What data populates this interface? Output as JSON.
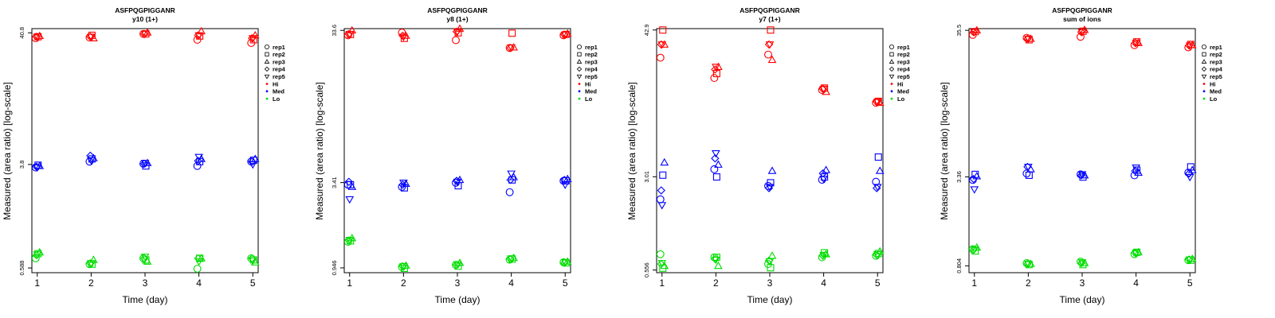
{
  "common": {
    "xlabel": "Time (day)",
    "ylabel": "Measured (area ratio) [log-scale]",
    "x_ticks": [
      1,
      2,
      3,
      4,
      5
    ],
    "legend": [
      {
        "label": "rep1",
        "symbol": "circle"
      },
      {
        "label": "rep2",
        "symbol": "square"
      },
      {
        "label": "rep3",
        "symbol": "triangle-up"
      },
      {
        "label": "rep4",
        "symbol": "diamond"
      },
      {
        "label": "rep5",
        "symbol": "triangle-down"
      },
      {
        "label": "Hi",
        "symbol": "dot",
        "color": "#ff0000"
      },
      {
        "label": "Med",
        "symbol": "dot",
        "color": "#0000ff"
      },
      {
        "label": "Lo",
        "symbol": "dot",
        "color": "#00dd00"
      }
    ],
    "legend_position": "right",
    "colors": {
      "Hi": "#ff0000",
      "Med": "#0000ff",
      "Lo": "#00dd00"
    }
  },
  "chart_data": [
    {
      "type": "scatter",
      "title": "ASFPQGPIGGANR",
      "subtitle": "y10 (1+)",
      "y_scale": "log",
      "y_ticks": [
        0.588,
        3.8,
        40.8
      ],
      "ylim": [
        0.54,
        44
      ],
      "x": [
        1,
        2,
        3,
        4,
        5
      ],
      "series": [
        {
          "level": "Hi",
          "replicate": "rep1",
          "values": [
            37,
            37.5,
            40,
            36,
            34
          ]
        },
        {
          "level": "Hi",
          "replicate": "rep2",
          "values": [
            38,
            39,
            40,
            38.5,
            36
          ]
        },
        {
          "level": "Hi",
          "replicate": "rep3",
          "values": [
            38.5,
            37,
            41,
            42,
            39
          ]
        },
        {
          "level": "Hi",
          "replicate": "rep4",
          "values": [
            38,
            38,
            40,
            39,
            37
          ]
        },
        {
          "level": "Hi",
          "replicate": "rep5",
          "values": [
            38,
            38,
            40,
            39,
            37
          ]
        },
        {
          "level": "Med",
          "replicate": "rep1",
          "values": [
            3.6,
            4.0,
            3.85,
            3.7,
            4.0
          ]
        },
        {
          "level": "Med",
          "replicate": "rep2",
          "values": [
            3.75,
            4.2,
            3.7,
            4.0,
            4.1
          ]
        },
        {
          "level": "Med",
          "replicate": "rep3",
          "values": [
            3.7,
            4.25,
            3.9,
            4.2,
            4.2
          ]
        },
        {
          "level": "Med",
          "replicate": "rep4",
          "values": [
            3.65,
            4.45,
            3.85,
            4.05,
            4.0
          ]
        },
        {
          "level": "Med",
          "replicate": "rep5",
          "values": [
            3.6,
            4.1,
            3.9,
            4.35,
            3.8
          ]
        },
        {
          "level": "Lo",
          "replicate": "rep1",
          "values": [
            0.7,
            0.63,
            0.7,
            0.58,
            0.7
          ]
        },
        {
          "level": "Lo",
          "replicate": "rep2",
          "values": [
            0.76,
            0.63,
            0.68,
            0.7,
            0.68
          ]
        },
        {
          "level": "Lo",
          "replicate": "rep3",
          "values": [
            0.78,
            0.68,
            0.66,
            0.7,
            0.65
          ]
        },
        {
          "level": "Lo",
          "replicate": "rep4",
          "values": [
            0.74,
            0.64,
            0.7,
            0.7,
            0.7
          ]
        },
        {
          "level": "Lo",
          "replicate": "rep5",
          "values": [
            0.75,
            0.64,
            0.72,
            0.66,
            0.67
          ]
        }
      ]
    },
    {
      "type": "scatter",
      "title": "ASFPQGPIGGANR",
      "subtitle": "y8 (1+)",
      "y_scale": "log",
      "y_ticks": [
        0.946,
        3.41,
        33.6
      ],
      "ylim": [
        0.88,
        34.5
      ],
      "x": [
        1,
        2,
        3,
        4,
        5
      ],
      "series": [
        {
          "level": "Hi",
          "replicate": "rep1",
          "values": [
            31.2,
            32.5,
            29.0,
            25.8,
            31.2
          ]
        },
        {
          "level": "Hi",
          "replicate": "rep2",
          "values": [
            31.6,
            29.8,
            32.4,
            32.2,
            31.6
          ]
        },
        {
          "level": "Hi",
          "replicate": "rep3",
          "values": [
            33.6,
            31.0,
            34.5,
            26.0,
            32.0
          ]
        },
        {
          "level": "Hi",
          "replicate": "rep4",
          "values": [
            31.8,
            31.0,
            33.0,
            25.8,
            31.5
          ]
        },
        {
          "level": "Hi",
          "replicate": "rep5",
          "values": [
            31.8,
            30.5,
            33.0,
            26.0,
            31.5
          ]
        },
        {
          "level": "Med",
          "replicate": "rep1",
          "values": [
            3.3,
            3.2,
            3.4,
            2.95,
            3.5
          ]
        },
        {
          "level": "Med",
          "replicate": "rep2",
          "values": [
            3.3,
            3.15,
            3.25,
            3.55,
            3.5
          ]
        },
        {
          "level": "Med",
          "replicate": "rep3",
          "values": [
            3.2,
            3.35,
            3.55,
            3.7,
            3.6
          ]
        },
        {
          "level": "Med",
          "replicate": "rep4",
          "values": [
            3.45,
            3.3,
            3.5,
            3.55,
            3.55
          ]
        },
        {
          "level": "Med",
          "replicate": "rep5",
          "values": [
            2.65,
            3.4,
            3.45,
            3.9,
            3.3
          ]
        },
        {
          "level": "Lo",
          "replicate": "rep1",
          "values": [
            1.4,
            0.96,
            0.99,
            1.07,
            1.03
          ]
        },
        {
          "level": "Lo",
          "replicate": "rep2",
          "values": [
            1.42,
            0.94,
            0.97,
            1.08,
            1.02
          ]
        },
        {
          "level": "Lo",
          "replicate": "rep3",
          "values": [
            1.48,
            0.98,
            1.02,
            1.1,
            1.04
          ]
        },
        {
          "level": "Lo",
          "replicate": "rep4",
          "values": [
            1.43,
            0.97,
            0.99,
            1.08,
            1.02
          ]
        },
        {
          "level": "Lo",
          "replicate": "rep5",
          "values": [
            1.44,
            0.97,
            1.0,
            1.09,
            1.03
          ]
        }
      ]
    },
    {
      "type": "scatter",
      "title": "ASFPQGPIGGANR",
      "subtitle": "y7 (1+)",
      "y_scale": "log",
      "y_ticks": [
        0.556,
        3.01,
        42.9
      ],
      "ylim": [
        0.53,
        44
      ],
      "x": [
        1,
        2,
        3,
        4,
        5
      ],
      "series": [
        {
          "level": "Hi",
          "replicate": "rep1",
          "values": [
            26.0,
            18.0,
            27.5,
            14.5,
            11.5
          ]
        },
        {
          "level": "Hi",
          "replicate": "rep2",
          "values": [
            42.9,
            19.5,
            42.9,
            15.0,
            11.8
          ]
        },
        {
          "level": "Hi",
          "replicate": "rep3",
          "values": [
            33.0,
            22.0,
            25.0,
            14.0,
            11.5
          ]
        },
        {
          "level": "Hi",
          "replicate": "rep4",
          "values": [
            33.0,
            21.0,
            33.0,
            14.8,
            11.7
          ]
        },
        {
          "level": "Hi",
          "replicate": "rep5",
          "values": [
            33.0,
            22.0,
            33.0,
            14.8,
            11.7
          ]
        },
        {
          "level": "Med",
          "replicate": "rep1",
          "values": [
            2.0,
            3.45,
            2.55,
            2.85,
            2.75
          ]
        },
        {
          "level": "Med",
          "replicate": "rep2",
          "values": [
            3.1,
            3.0,
            2.7,
            3.0,
            4.3
          ]
        },
        {
          "level": "Med",
          "replicate": "rep3",
          "values": [
            3.9,
            3.75,
            3.35,
            3.4,
            3.35
          ]
        },
        {
          "level": "Med",
          "replicate": "rep4",
          "values": [
            2.35,
            4.2,
            2.45,
            3.2,
            2.45
          ]
        },
        {
          "level": "Med",
          "replicate": "rep5",
          "values": [
            1.8,
            4.6,
            2.5,
            2.9,
            2.5
          ]
        },
        {
          "level": "Lo",
          "replicate": "rep1",
          "values": [
            0.74,
            0.7,
            0.62,
            0.7,
            0.72
          ]
        },
        {
          "level": "Lo",
          "replicate": "rep2",
          "values": [
            0.575,
            0.7,
            0.58,
            0.76,
            0.75
          ]
        },
        {
          "level": "Lo",
          "replicate": "rep3",
          "values": [
            0.6,
            0.6,
            0.72,
            0.74,
            0.78
          ]
        },
        {
          "level": "Lo",
          "replicate": "rep4",
          "values": [
            0.62,
            0.68,
            0.66,
            0.72,
            0.73
          ]
        },
        {
          "level": "Lo",
          "replicate": "rep5",
          "values": [
            0.63,
            0.67,
            0.65,
            0.73,
            0.74
          ]
        }
      ]
    },
    {
      "type": "scatter",
      "title": "ASFPQGPIGGANR",
      "subtitle": "sum of ions",
      "y_scale": "log",
      "y_ticks": [
        0.804,
        3.36,
        35.5
      ],
      "ylim": [
        0.72,
        36.5
      ],
      "x": [
        1,
        2,
        3,
        4,
        5
      ],
      "series": [
        {
          "level": "Hi",
          "replicate": "rep1",
          "values": [
            33.0,
            31.5,
            32.0,
            28.0,
            27.0
          ]
        },
        {
          "level": "Hi",
          "replicate": "rep2",
          "values": [
            34.8,
            30.5,
            35.0,
            29.5,
            28.3
          ]
        },
        {
          "level": "Hi",
          "replicate": "rep3",
          "values": [
            35.5,
            31.0,
            35.8,
            29.0,
            28.0
          ]
        },
        {
          "level": "Hi",
          "replicate": "rep4",
          "values": [
            34.5,
            31.0,
            34.5,
            29.0,
            27.8
          ]
        },
        {
          "level": "Hi",
          "replicate": "rep5",
          "values": [
            34.5,
            31.0,
            34.5,
            29.0,
            27.8
          ]
        },
        {
          "level": "Med",
          "replicate": "rep1",
          "values": [
            3.2,
            3.55,
            3.5,
            3.45,
            3.6
          ]
        },
        {
          "level": "Med",
          "replicate": "rep2",
          "values": [
            3.5,
            3.45,
            3.35,
            3.75,
            3.95
          ]
        },
        {
          "level": "Med",
          "replicate": "rep3",
          "values": [
            3.4,
            3.8,
            3.45,
            3.6,
            3.75
          ]
        },
        {
          "level": "Med",
          "replicate": "rep4",
          "values": [
            3.25,
            3.95,
            3.45,
            3.7,
            3.55
          ]
        },
        {
          "level": "Med",
          "replicate": "rep5",
          "values": [
            2.75,
            3.95,
            3.5,
            3.9,
            3.35
          ]
        },
        {
          "level": "Lo",
          "replicate": "rep1",
          "values": [
            1.05,
            0.84,
            0.86,
            0.97,
            0.88
          ]
        },
        {
          "level": "Lo",
          "replicate": "rep2",
          "values": [
            1.02,
            0.82,
            0.82,
            1.0,
            0.88
          ]
        },
        {
          "level": "Lo",
          "replicate": "rep3",
          "values": [
            1.08,
            0.83,
            0.84,
            1.0,
            0.9
          ]
        },
        {
          "level": "Lo",
          "replicate": "rep4",
          "values": [
            1.04,
            0.83,
            0.84,
            0.99,
            0.89
          ]
        },
        {
          "level": "Lo",
          "replicate": "rep5",
          "values": [
            1.05,
            0.83,
            0.85,
            0.99,
            0.89
          ]
        }
      ]
    }
  ]
}
